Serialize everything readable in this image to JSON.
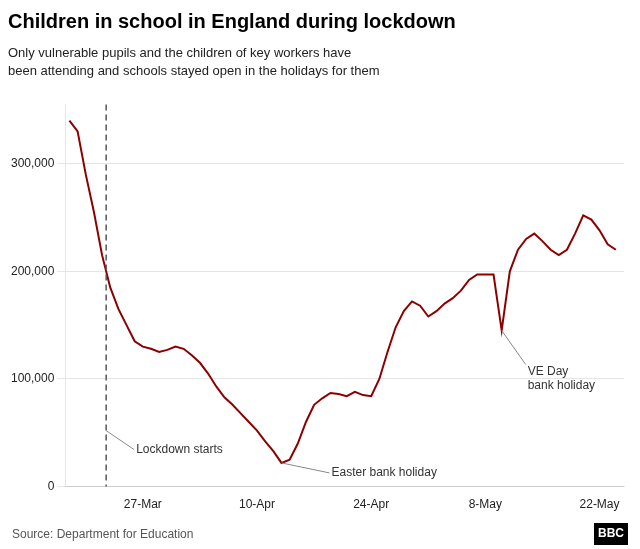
{
  "chart_data": {
    "type": "line",
    "title": "Children in school in England during lockdown",
    "subtitle": "Only vulnerable pupils and the children of key workers have\nbeen attending and schools stayed open in the holidays for them",
    "source": "Source: Department for Education",
    "credit": "BBC",
    "color": "#8B0000",
    "x": [
      0,
      1,
      2,
      3,
      4,
      5,
      6,
      7,
      8,
      9,
      10,
      11,
      12,
      13,
      14,
      15,
      16,
      17,
      18,
      19,
      20,
      21,
      22,
      23,
      24,
      25,
      26,
      27,
      28,
      29,
      30,
      31,
      32,
      33,
      34,
      35,
      36,
      37,
      38,
      39,
      40,
      41,
      42,
      43,
      44,
      45,
      46,
      47,
      48,
      49,
      50,
      51,
      52,
      53,
      54,
      55,
      56,
      57,
      58,
      59,
      60,
      61,
      62,
      63,
      64,
      65,
      66,
      67
    ],
    "values": [
      340000,
      330000,
      290000,
      255000,
      215000,
      185000,
      165000,
      150000,
      135000,
      130000,
      128000,
      125000,
      127000,
      130000,
      128000,
      122000,
      115000,
      105000,
      93000,
      83000,
      76000,
      68000,
      60000,
      52000,
      42000,
      33000,
      22000,
      25000,
      40000,
      60000,
      76000,
      82000,
      87000,
      86000,
      84000,
      88000,
      85000,
      84000,
      100000,
      125000,
      148000,
      163000,
      172000,
      168000,
      158000,
      163000,
      170000,
      175000,
      182000,
      192000,
      197000,
      197000,
      197000,
      145000,
      200000,
      220000,
      230000,
      235000,
      228000,
      220000,
      215000,
      220000,
      235000,
      252000,
      248000,
      238000,
      225000,
      220000
    ],
    "xlim": [
      -0.5,
      68
    ],
    "xticks": [
      {
        "value": 9,
        "label": "27-Mar"
      },
      {
        "value": 23,
        "label": "10-Apr"
      },
      {
        "value": 37,
        "label": "24-Apr"
      },
      {
        "value": 51,
        "label": "8-May"
      },
      {
        "value": 65,
        "label": "22-May"
      }
    ],
    "ylim": [
      0,
      355000
    ],
    "yticks": [
      0,
      {
        "value": 100000,
        "label": "100,000"
      },
      {
        "value": 200000,
        "label": "200,000"
      },
      {
        "value": 300000,
        "label": "300,000"
      }
    ],
    "grid": "y",
    "vline": {
      "x": 4.5,
      "line_style": "dashed"
    },
    "annotations": [
      {
        "text": "Lockdown starts",
        "x": 4.5,
        "y": 52000
      },
      {
        "text": "Easter bank holiday",
        "x": 26,
        "y": 22000
      },
      {
        "text": "VE Day\nbank holiday",
        "x": 53,
        "y": 145000
      }
    ]
  }
}
